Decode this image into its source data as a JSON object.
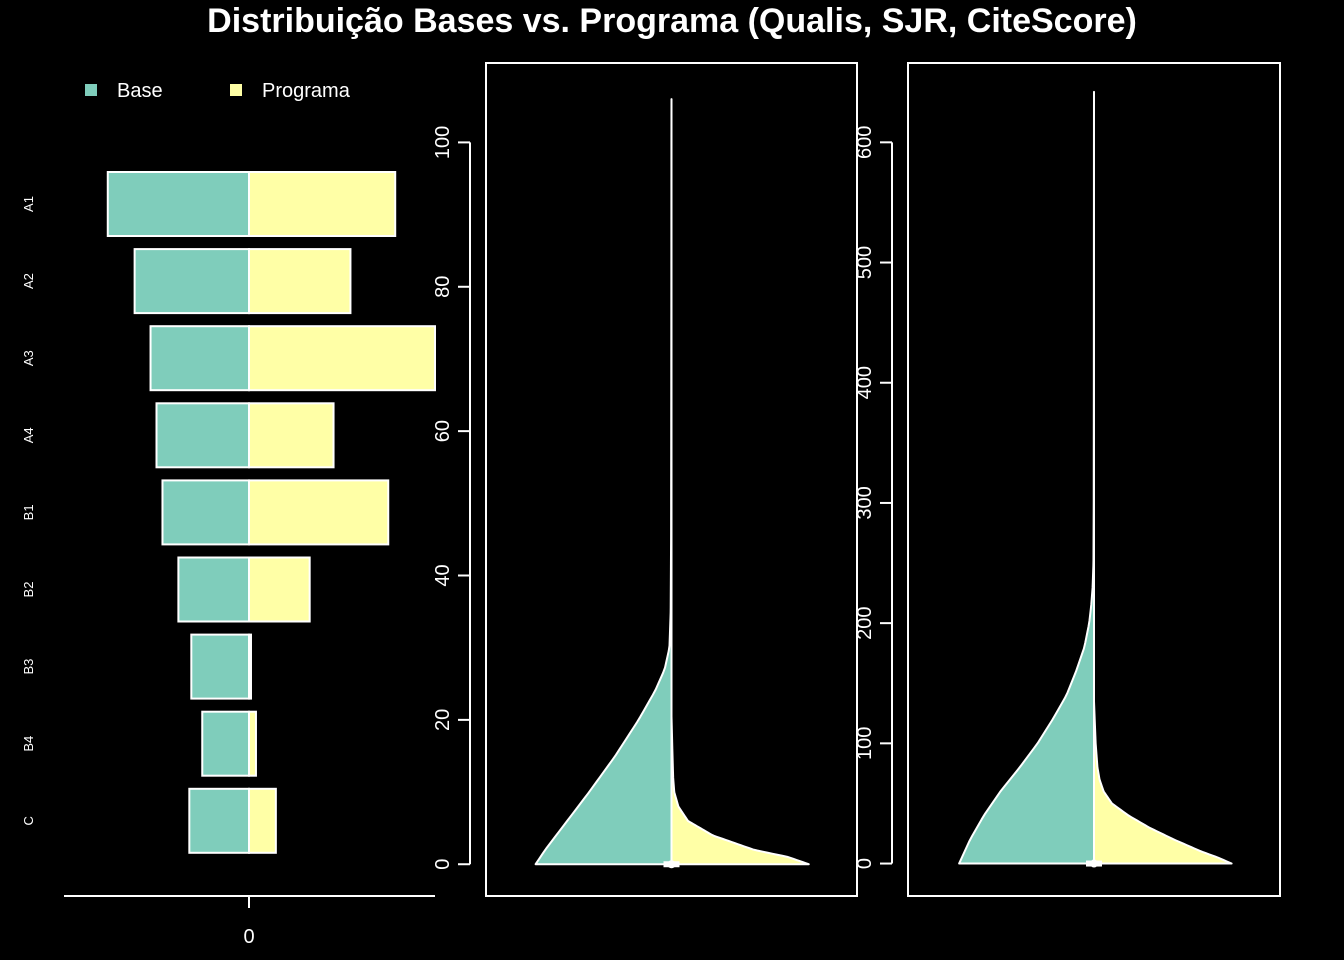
{
  "figure": {
    "title": "Distribuição Bases vs. Programa (Qualis, SJR, CiteScore)",
    "background": "#000000",
    "foreground": "#ffffff"
  },
  "colors": {
    "base": "#7fcdbb",
    "programa": "#ffffa6"
  },
  "chart_data": [
    {
      "type": "bar",
      "orientation": "horizontal-back-to-back",
      "categories": [
        "A1",
        "A2",
        "A3",
        "A4",
        "B1",
        "B2",
        "B3",
        "B4",
        "C"
      ],
      "x_tick_labels": [
        "0"
      ],
      "legend": {
        "placement": "top-left",
        "entries": [
          "Base",
          "Programa"
        ]
      },
      "series": [
        {
          "name": "Base",
          "values": [
            -0.142,
            -0.115,
            -0.099,
            -0.093,
            -0.087,
            -0.071,
            -0.058,
            -0.047,
            -0.06
          ]
        },
        {
          "name": "Programa",
          "values": [
            0.147,
            0.102,
            0.187,
            0.085,
            0.14,
            0.061,
            0.002,
            0.007,
            0.027
          ]
        }
      ],
      "xlim": [
        -0.186,
        0.187
      ]
    },
    {
      "type": "area",
      "subtype": "split-violin",
      "ylim": [
        -4.4,
        111
      ],
      "y_ticks": [
        0,
        20,
        40,
        60,
        80,
        100
      ],
      "series": [
        {
          "name": "Base",
          "side": "left",
          "y": [
            0,
            2,
            5,
            10,
            15,
            20,
            24,
            27,
            30,
            35,
            45,
            60,
            80,
            100,
            106
          ],
          "density": [
            0.99,
            0.92,
            0.8,
            0.6,
            0.41,
            0.24,
            0.12,
            0.05,
            0.015,
            0.006,
            0.003,
            0.002,
            0.001,
            0.0005,
            0
          ]
        },
        {
          "name": "Programa",
          "side": "right",
          "y": [
            0,
            1,
            2,
            4,
            6,
            8,
            10,
            12,
            16,
            20.5
          ],
          "density": [
            1.0,
            0.85,
            0.6,
            0.3,
            0.12,
            0.05,
            0.02,
            0.012,
            0.006,
            0
          ]
        }
      ],
      "median": 0
    },
    {
      "type": "area",
      "subtype": "split-violin",
      "ylim": [
        -27,
        666
      ],
      "y_ticks": [
        0,
        100,
        200,
        300,
        400,
        500,
        600
      ],
      "series": [
        {
          "name": "Base",
          "side": "left",
          "y": [
            0,
            20,
            40,
            60,
            80,
            100,
            120,
            140,
            160,
            180,
            200,
            215,
            230,
            250,
            300,
            400,
            500,
            600,
            642
          ],
          "density": [
            0.98,
            0.9,
            0.8,
            0.68,
            0.54,
            0.41,
            0.3,
            0.2,
            0.13,
            0.07,
            0.035,
            0.02,
            0.01,
            0.004,
            0.002,
            0.0012,
            0.0008,
            0.0004,
            0
          ]
        },
        {
          "name": "Programa",
          "side": "right",
          "y": [
            0,
            5,
            10,
            20,
            30,
            40,
            50,
            60,
            70,
            80,
            100,
            120,
            135
          ],
          "density": [
            1.0,
            0.9,
            0.78,
            0.58,
            0.4,
            0.25,
            0.13,
            0.07,
            0.04,
            0.025,
            0.012,
            0.005,
            0
          ]
        }
      ],
      "median": 0
    }
  ]
}
